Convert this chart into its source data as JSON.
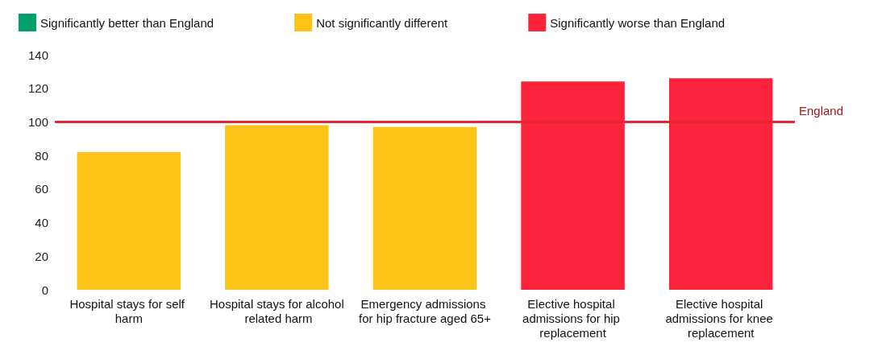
{
  "chart_data": {
    "type": "bar",
    "stacked": true,
    "categories": [
      "Hospital stays for self harm",
      "Hospital stays for alcohol related harm",
      "Emergency admissions for hip fracture aged 65+",
      "Elective hospital admissions for hip replacement",
      "Elective hospital admissions for knee replacement"
    ],
    "series": [
      {
        "name": "Significantly better than England",
        "color": "#00a06a",
        "values": [
          null,
          null,
          null,
          null,
          null
        ]
      },
      {
        "name": "Not significantly different",
        "color": "#fcc419",
        "values": [
          82,
          98,
          97,
          null,
          null
        ]
      },
      {
        "name": "Significantly worse than England",
        "color": "#fc243c",
        "values": [
          null,
          null,
          null,
          124,
          126
        ]
      }
    ],
    "ylim": [
      0,
      140
    ],
    "yticks": [
      0,
      20,
      40,
      60,
      80,
      100,
      120,
      140
    ],
    "grid": false,
    "legend": "top",
    "ref_lines": [
      {
        "axis": "y",
        "value": 100,
        "label": "England",
        "color": "#e8252e"
      }
    ]
  }
}
